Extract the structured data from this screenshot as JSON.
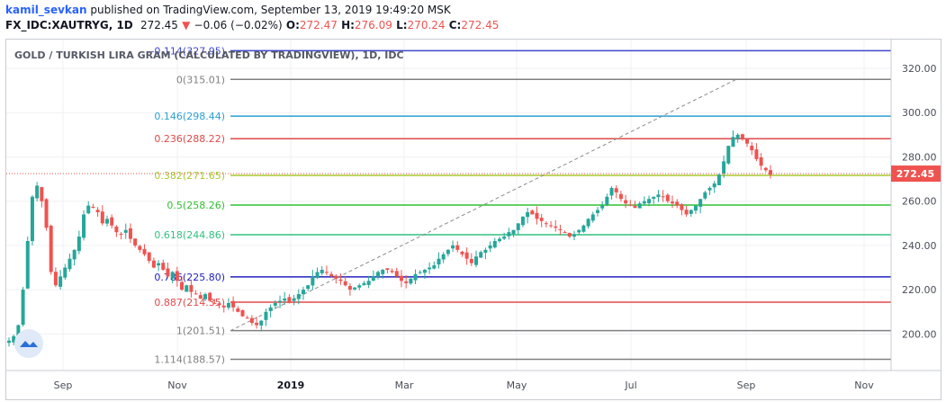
{
  "header": {
    "username": "kamil_sevkan",
    "published_text": "published on TradingView.com, September 13, 2019 19:49:20 MSK",
    "symbol": "FX_IDC:XAUTRYG, 1D",
    "last_price": "272.45",
    "change_arrow": "▼",
    "change": "−0.06 (−0.02%)",
    "open_label": "O:",
    "open": "272.47",
    "high_label": "H:",
    "high": "276.09",
    "low_label": "L:",
    "low": "270.24",
    "close_label": "C:",
    "close": "272.45"
  },
  "chart_data": {
    "type": "candlestick",
    "title": "GOLD / TURKISH LIRA GRAM (CALCULATED BY TRADINGVIEW), 1D, IDC",
    "y_ticks": [
      "320.00",
      "300.00",
      "280.00",
      "260.00",
      "240.00",
      "220.00",
      "200.00"
    ],
    "y_tick_values": [
      320,
      300,
      280,
      260,
      240,
      220,
      200
    ],
    "ylim": [
      183.5,
      333.0
    ],
    "x_ticks": [
      {
        "label": "Sep",
        "bold": false
      },
      {
        "label": "Nov",
        "bold": false
      },
      {
        "label": "2019",
        "bold": true
      },
      {
        "label": "Mar",
        "bold": false
      },
      {
        "label": "May",
        "bold": false
      },
      {
        "label": "Jul",
        "bold": false
      },
      {
        "label": "Sep",
        "bold": false
      },
      {
        "label": "Nov",
        "bold": false
      }
    ],
    "current_price": "272.45",
    "current_price_value": 272.45,
    "fib_levels": [
      {
        "label": "-0.114(327.95)",
        "value": 327.95,
        "color": "#3f48cc"
      },
      {
        "label": "0(315.01)",
        "value": 315.01,
        "color": "#808080"
      },
      {
        "label": "0.146(298.44)",
        "value": 298.44,
        "color": "#2b9fd4"
      },
      {
        "label": "0.236(288.22)",
        "value": 288.22,
        "color": "#e04a4a"
      },
      {
        "label": "0.382(271.65)",
        "value": 271.65,
        "color": "#a8c830"
      },
      {
        "label": "0.5(258.26)",
        "value": 258.26,
        "color": "#30c030"
      },
      {
        "label": "0.618(244.86)",
        "value": 244.86,
        "color": "#30c080"
      },
      {
        "label": "0.786(225.80)",
        "value": 225.8,
        "color": "#2020c0"
      },
      {
        "label": "0.887(214.35)",
        "value": 214.35,
        "color": "#e04a4a"
      },
      {
        "label": "1(201.51)",
        "value": 201.51,
        "color": "#808080"
      },
      {
        "label": "1.114(188.57)",
        "value": 188.57,
        "color": "#808080"
      }
    ],
    "trend_line": {
      "from": 201.51,
      "to": 315.01
    },
    "candles_close_path": [
      197,
      199,
      204,
      220,
      242,
      262,
      267,
      260,
      248,
      228,
      222,
      226,
      230,
      234,
      238,
      244,
      254,
      258,
      257,
      255,
      250,
      252,
      249,
      246,
      245,
      247,
      243,
      240,
      238,
      236,
      233,
      230,
      232,
      229,
      226,
      228,
      224,
      220,
      222,
      219,
      218,
      216,
      218,
      215,
      214,
      213,
      212,
      214,
      212,
      210,
      208,
      207,
      205,
      204,
      206,
      210,
      212,
      214,
      215,
      216,
      214,
      216,
      218,
      220,
      222,
      226,
      228,
      229,
      228,
      226,
      225,
      224,
      222,
      220,
      221,
      222,
      223,
      224,
      226,
      228,
      229,
      229,
      228,
      226,
      224,
      223,
      225,
      227,
      228,
      229,
      230,
      231,
      234,
      236,
      238,
      240,
      238,
      236,
      234,
      232,
      235,
      237,
      238,
      240,
      242,
      243,
      244,
      246,
      247,
      250,
      253,
      255,
      254,
      252,
      251,
      250,
      249,
      248,
      247,
      246,
      244,
      245,
      247,
      249,
      252,
      254,
      256,
      258,
      262,
      266,
      264,
      261,
      259,
      258,
      257,
      259,
      260,
      261,
      262,
      263,
      262,
      260,
      259,
      258,
      256,
      254,
      256,
      258,
      261,
      264,
      266,
      268,
      272,
      278,
      285,
      289,
      290,
      288,
      286,
      283,
      279,
      276,
      274,
      272
    ]
  }
}
